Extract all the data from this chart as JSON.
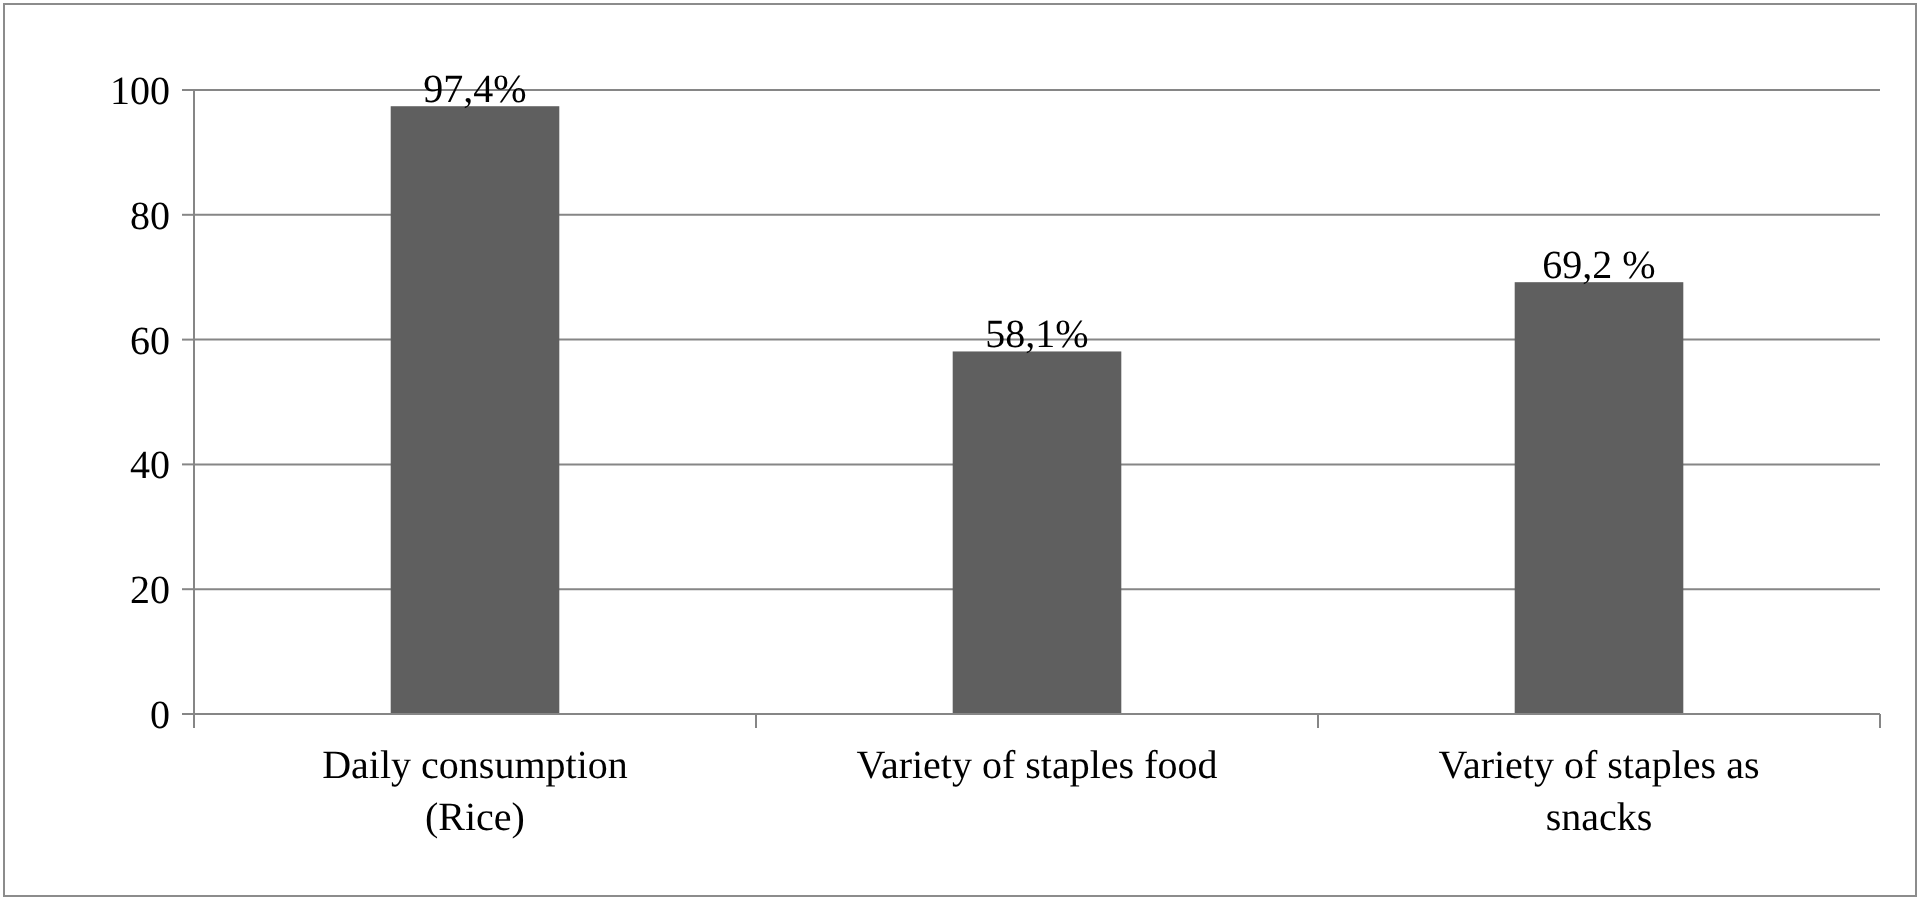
{
  "chart_data": {
    "type": "bar",
    "categories": [
      "Daily consumption (Rice)",
      "Variety of staples food",
      "Variety of staples as snacks"
    ],
    "values": [
      97.4,
      58.1,
      69.2
    ],
    "value_labels": [
      "97,4%",
      "58,1%",
      "69,2 %"
    ],
    "color": "#5f5f5f",
    "ylim": [
      0,
      100
    ],
    "yticks": [
      0,
      20,
      40,
      60,
      80,
      100
    ],
    "grid": "y"
  }
}
